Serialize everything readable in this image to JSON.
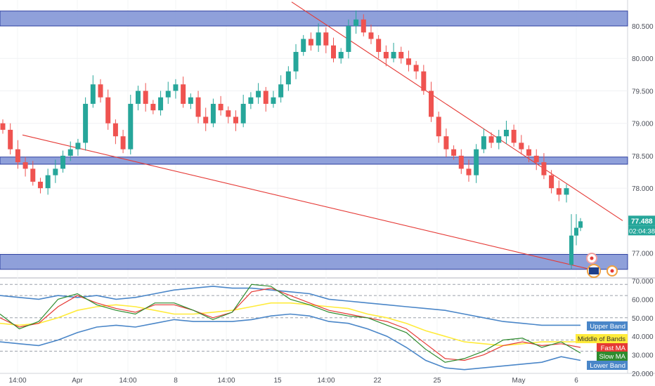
{
  "chart_data": [
    {
      "type": "candlestick",
      "title": "",
      "ylim": [
        76.65,
        80.9
      ],
      "y_ticks": [
        "80.500",
        "80.000",
        "79.500",
        "79.000",
        "78.500",
        "78.000",
        "77.000"
      ],
      "x_ticks": [
        "14:00",
        "Apr",
        "14:00",
        "8",
        "14:00",
        "15",
        "14:00",
        "22",
        "25",
        "May",
        "6"
      ],
      "last_price": "77.488",
      "countdown": "02:04:38",
      "colors": {
        "up": "#26a69a",
        "down": "#ef5350",
        "zone_fill": "#7b8fd4",
        "zone_edge": "#2d3fa0",
        "trendline": "#e53935",
        "price_badge": "#26a69a"
      },
      "zones": [
        {
          "low": 80.5,
          "high": 80.73
        },
        {
          "low": 78.37,
          "high": 78.48
        },
        {
          "low": 76.75,
          "high": 76.98
        }
      ],
      "trendlines": [
        {
          "from": [
            "bar 0",
            78.82
          ],
          "to": [
            "bar 232",
            76.75
          ],
          "note": "support"
        },
        {
          "from": [
            "bar 118",
            80.87
          ],
          "to": [
            "bar 244",
            77.5
          ],
          "note": "resistance"
        }
      ],
      "closes": [
        78.9,
        78.6,
        78.4,
        78.3,
        78.1,
        78.0,
        78.2,
        78.3,
        78.5,
        78.6,
        78.7,
        79.3,
        79.6,
        79.4,
        79.0,
        78.8,
        78.6,
        79.3,
        79.5,
        79.3,
        79.2,
        79.4,
        79.5,
        79.6,
        79.3,
        79.4,
        79.1,
        79.0,
        79.3,
        79.2,
        79.1,
        79.0,
        79.3,
        79.4,
        79.5,
        79.3,
        79.4,
        79.6,
        79.8,
        80.1,
        80.3,
        80.2,
        80.4,
        80.2,
        80.0,
        80.1,
        80.5,
        80.6,
        80.4,
        80.3,
        80.1,
        80.0,
        80.1,
        80.0,
        79.9,
        79.8,
        79.5,
        79.1,
        78.8,
        78.6,
        78.5,
        78.3,
        78.2,
        78.6,
        78.8,
        78.7,
        78.8,
        78.9,
        78.7,
        78.6,
        78.5,
        78.4,
        78.2,
        78.0,
        77.9,
        78.0
      ],
      "last_bars": {
        "open": 76.82,
        "high": 77.6,
        "low": 76.75,
        "close": 77.49
      }
    },
    {
      "type": "line",
      "title": "",
      "ylim": [
        20,
        70
      ],
      "y_ticks": [
        "70.000",
        "60.000",
        "50.000",
        "40.000",
        "30.000",
        "20.000"
      ],
      "dashed_levels": [
        68,
        62,
        50,
        38,
        32
      ],
      "series": [
        {
          "name": "Upper Band",
          "color": "#4a86c8",
          "values": [
            62,
            61,
            60,
            62,
            61,
            62,
            60,
            61,
            63,
            65,
            66,
            67,
            66,
            66,
            65,
            64,
            63,
            60,
            59,
            58,
            57,
            56,
            55,
            54,
            52,
            50,
            48,
            47,
            46,
            46,
            46
          ]
        },
        {
          "name": "Middle of Bands",
          "color": "#ffeb3b",
          "values": [
            47,
            46,
            47,
            50,
            54,
            56,
            57,
            56,
            54,
            52,
            52,
            53,
            54,
            56,
            58,
            58,
            57,
            56,
            55,
            52,
            50,
            47,
            43,
            40,
            37,
            36,
            35,
            36,
            37,
            37,
            37
          ]
        },
        {
          "name": "Fast MA",
          "color": "#e53935",
          "values": [
            50,
            45,
            47,
            56,
            62,
            58,
            55,
            53,
            57,
            57,
            54,
            50,
            53,
            64,
            66,
            62,
            58,
            54,
            52,
            50,
            48,
            44,
            36,
            28,
            27,
            30,
            35,
            37,
            35,
            36,
            34
          ]
        },
        {
          "name": "Slow MA",
          "color": "#2e8b2e",
          "values": [
            52,
            44,
            48,
            60,
            63,
            57,
            54,
            52,
            58,
            58,
            54,
            49,
            53,
            68,
            67,
            60,
            57,
            53,
            51,
            50,
            46,
            42,
            33,
            26,
            28,
            32,
            38,
            39,
            34,
            37,
            31
          ]
        },
        {
          "name": "Lower Band",
          "color": "#4a86c8",
          "values": [
            37,
            36,
            35,
            38,
            42,
            45,
            46,
            45,
            47,
            49,
            48,
            48,
            48,
            49,
            51,
            52,
            51,
            48,
            47,
            44,
            40,
            34,
            27,
            23,
            22,
            23,
            24,
            25,
            26,
            29,
            27
          ]
        }
      ]
    }
  ]
}
